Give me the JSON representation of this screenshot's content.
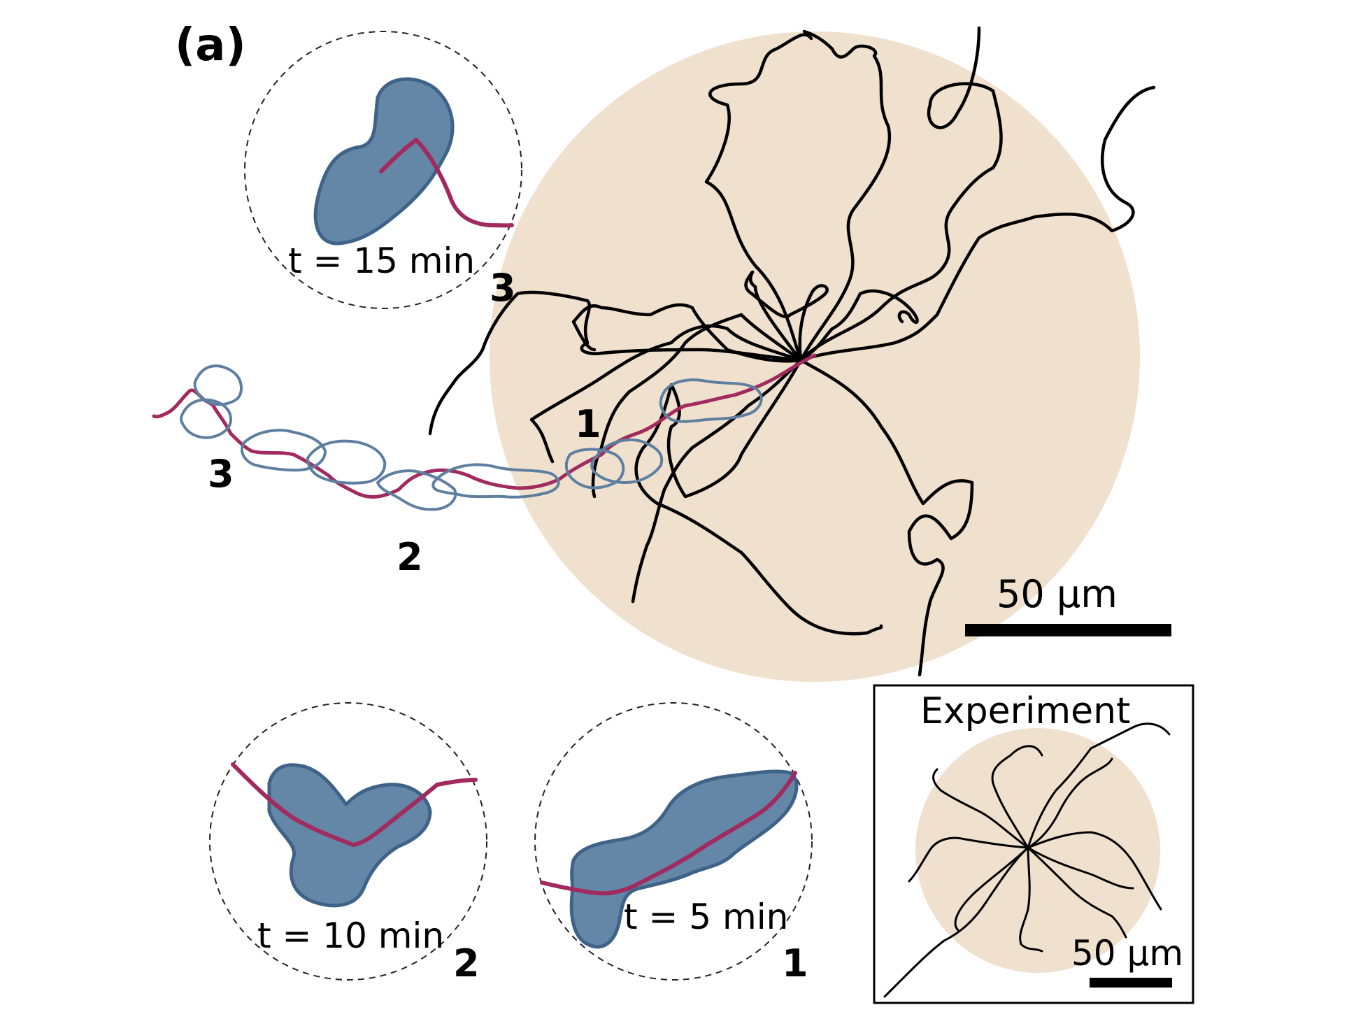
{
  "panel_label": "(a)",
  "colors": {
    "region_fill": "#f0e0ce",
    "cell_fill": "#6487a7",
    "cell_outline": "#5e7fa0",
    "path_color": "#a12a5e",
    "track_color": "#000000"
  },
  "main": {
    "path_markers": [
      "1",
      "2",
      "3"
    ],
    "scale_bar_label": "50 µm"
  },
  "snapshots": [
    {
      "id": "1",
      "time_label": "t = 5 min"
    },
    {
      "id": "2",
      "time_label": "t = 10 min"
    },
    {
      "id": "3",
      "time_label": "t = 15 min"
    }
  ],
  "inset": {
    "title": "Experiment",
    "scale_bar_label": "50 µm"
  }
}
